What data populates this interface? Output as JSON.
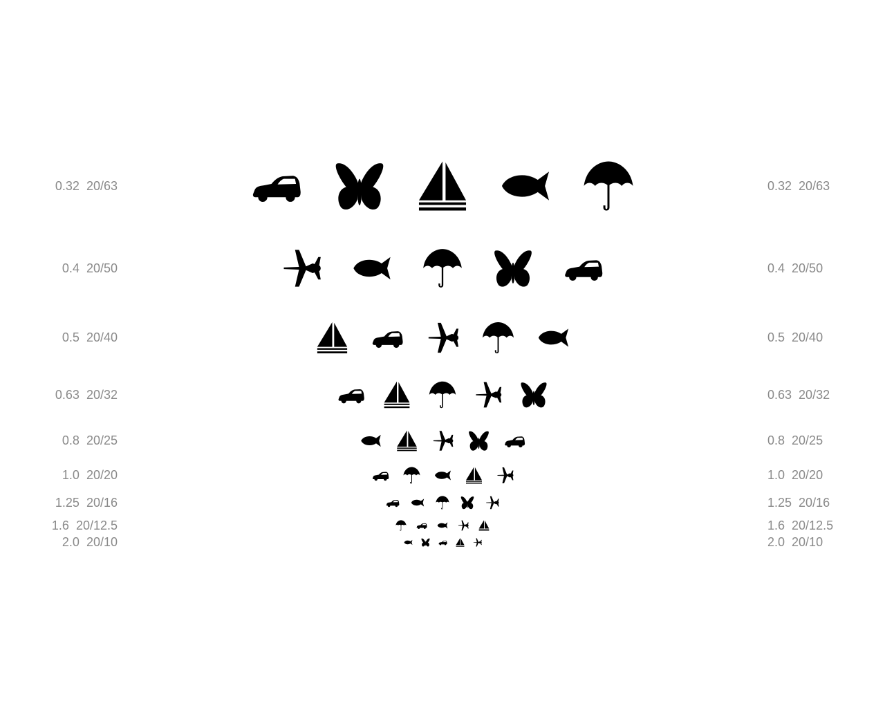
{
  "chart": {
    "rows": [
      {
        "decimal": "0.32",
        "snellen": "20/63",
        "symbols": [
          "car-icon",
          "butterfly-icon",
          "sailboat-icon",
          "fish-icon",
          "umbrella-icon"
        ]
      },
      {
        "decimal": "0.4",
        "snellen": "20/50",
        "symbols": [
          "airplane-icon",
          "fish-icon",
          "umbrella-icon",
          "butterfly-icon",
          "car-icon"
        ]
      },
      {
        "decimal": "0.5",
        "snellen": "20/40",
        "symbols": [
          "sailboat-icon",
          "car-icon",
          "airplane-icon",
          "umbrella-icon",
          "fish-icon"
        ]
      },
      {
        "decimal": "0.63",
        "snellen": "20/32",
        "symbols": [
          "car-icon",
          "sailboat-icon",
          "umbrella-icon",
          "airplane-icon",
          "butterfly-icon"
        ]
      },
      {
        "decimal": "0.8",
        "snellen": "20/25",
        "symbols": [
          "fish-icon",
          "sailboat-icon",
          "airplane-icon",
          "butterfly-icon",
          "car-icon"
        ]
      },
      {
        "decimal": "1.0",
        "snellen": "20/20",
        "symbols": [
          "car-icon",
          "umbrella-icon",
          "fish-icon",
          "sailboat-icon",
          "airplane-icon"
        ]
      },
      {
        "decimal": "1.25",
        "snellen": "20/16",
        "symbols": [
          "car-icon",
          "fish-icon",
          "umbrella-icon",
          "butterfly-icon",
          "airplane-icon"
        ]
      },
      {
        "decimal": "1.6",
        "snellen": "20/12.5",
        "symbols": [
          "umbrella-icon",
          "car-icon",
          "fish-icon",
          "airplane-icon",
          "sailboat-icon"
        ]
      },
      {
        "decimal": "2.0",
        "snellen": "20/10",
        "symbols": [
          "fish-icon",
          "butterfly-icon",
          "car-icon",
          "sailboat-icon",
          "airplane-icon"
        ]
      }
    ]
  }
}
